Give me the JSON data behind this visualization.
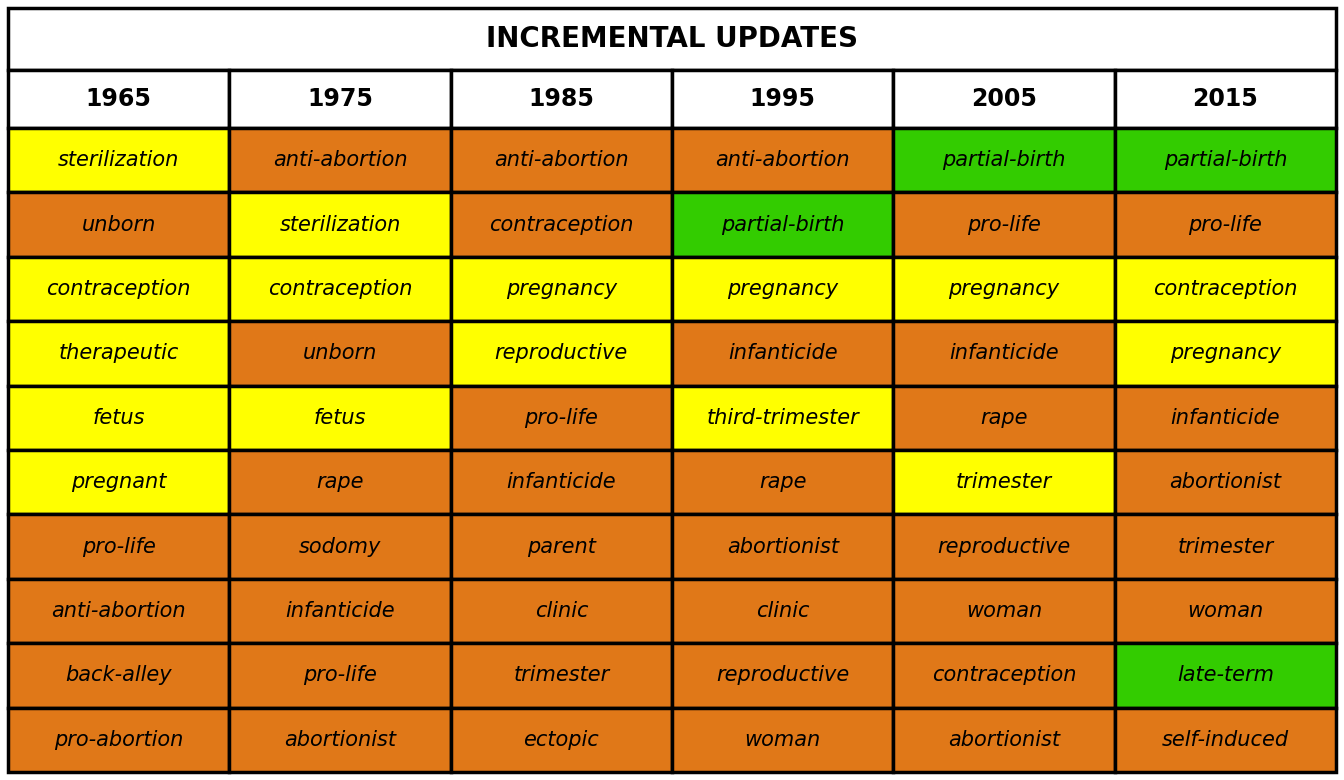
{
  "title": "INCREMENTAL UPDATES",
  "years": [
    "1965",
    "1975",
    "1985",
    "1995",
    "2005",
    "2015"
  ],
  "cells": [
    [
      "sterilization",
      "anti-abortion",
      "anti-abortion",
      "anti-abortion",
      "partial-birth",
      "partial-birth"
    ],
    [
      "unborn",
      "sterilization",
      "contraception",
      "partial-birth",
      "pro-life",
      "pro-life"
    ],
    [
      "contraception",
      "contraception",
      "pregnancy",
      "pregnancy",
      "pregnancy",
      "contraception"
    ],
    [
      "therapeutic",
      "unborn",
      "reproductive",
      "infanticide",
      "infanticide",
      "pregnancy"
    ],
    [
      "fetus",
      "fetus",
      "pro-life",
      "third-trimester",
      "rape",
      "infanticide"
    ],
    [
      "pregnant",
      "rape",
      "infanticide",
      "rape",
      "trimester",
      "abortionist"
    ],
    [
      "pro-life",
      "sodomy",
      "parent",
      "abortionist",
      "reproductive",
      "trimester"
    ],
    [
      "anti-abortion",
      "infanticide",
      "clinic",
      "clinic",
      "woman",
      "woman"
    ],
    [
      "back-alley",
      "pro-life",
      "trimester",
      "reproductive",
      "contraception",
      "late-term"
    ],
    [
      "pro-abortion",
      "abortionist",
      "ectopic",
      "woman",
      "abortionist",
      "self-induced"
    ]
  ],
  "colors": [
    [
      "#FFFF00",
      "#E07818",
      "#E07818",
      "#E07818",
      "#33CC00",
      "#33CC00"
    ],
    [
      "#E07818",
      "#FFFF00",
      "#E07818",
      "#33CC00",
      "#E07818",
      "#E07818"
    ],
    [
      "#FFFF00",
      "#FFFF00",
      "#FFFF00",
      "#FFFF00",
      "#FFFF00",
      "#FFFF00"
    ],
    [
      "#FFFF00",
      "#E07818",
      "#FFFF00",
      "#E07818",
      "#E07818",
      "#FFFF00"
    ],
    [
      "#FFFF00",
      "#FFFF00",
      "#E07818",
      "#FFFF00",
      "#E07818",
      "#E07818"
    ],
    [
      "#FFFF00",
      "#E07818",
      "#E07818",
      "#E07818",
      "#FFFF00",
      "#E07818"
    ],
    [
      "#E07818",
      "#E07818",
      "#E07818",
      "#E07818",
      "#E07818",
      "#E07818"
    ],
    [
      "#E07818",
      "#E07818",
      "#E07818",
      "#E07818",
      "#E07818",
      "#E07818"
    ],
    [
      "#E07818",
      "#E07818",
      "#E07818",
      "#E07818",
      "#E07818",
      "#33CC00"
    ],
    [
      "#E07818",
      "#E07818",
      "#E07818",
      "#E07818",
      "#E07818",
      "#E07818"
    ]
  ],
  "title_fontsize": 20,
  "header_fontsize": 17,
  "cell_fontsize": 15,
  "bg_color": "#FFFFFF",
  "border_color": "#000000",
  "border_lw": 2.5
}
